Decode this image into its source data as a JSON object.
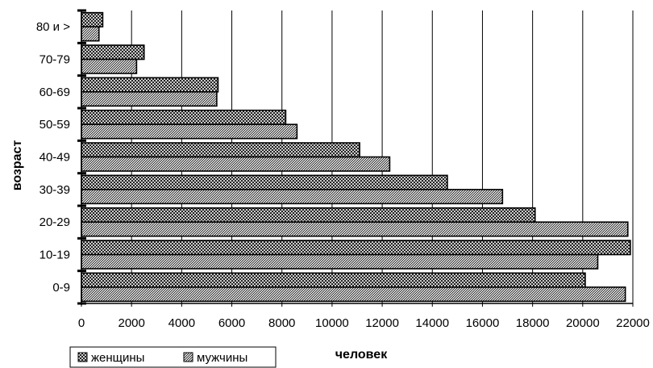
{
  "chart_data": {
    "type": "bar",
    "orientation": "horizontal",
    "categories": [
      "0-9",
      "10-19",
      "20-29",
      "30-39",
      "40-49",
      "50-59",
      "60-69",
      "70-79",
      "80 и >"
    ],
    "series": [
      {
        "name": "женщины",
        "values": [
          20100,
          21900,
          18100,
          14600,
          11100,
          8150,
          5450,
          2500,
          850
        ],
        "pattern": "crosshatch"
      },
      {
        "name": "мужчины",
        "values": [
          21700,
          20600,
          21800,
          16800,
          12300,
          8600,
          5400,
          2200,
          700
        ],
        "pattern": "diagonal"
      }
    ],
    "xlabel": "человек",
    "ylabel": "возраст",
    "xlim": [
      0,
      22000
    ],
    "xticks": [
      0,
      2000,
      4000,
      6000,
      8000,
      10000,
      12000,
      14000,
      16000,
      18000,
      20000,
      22000
    ],
    "grid": "vertical",
    "legend_position": "bottom-left",
    "colors": {
      "fill": "#ffffff",
      "stroke": "#000000",
      "grid": "#000000"
    }
  }
}
